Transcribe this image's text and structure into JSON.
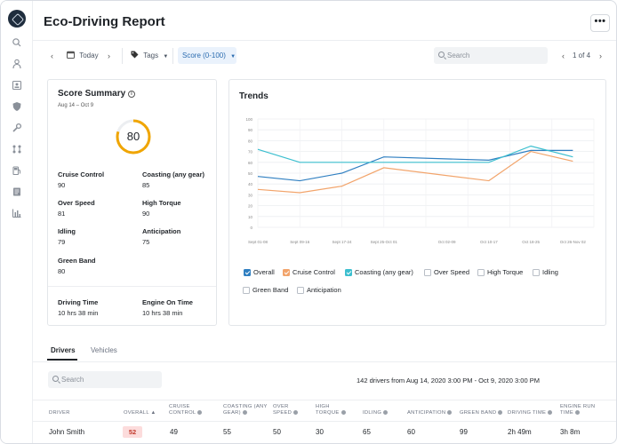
{
  "header": {
    "title": "Eco-Driving Report",
    "more_label": "•••"
  },
  "toolbar": {
    "date_label": "Today",
    "tags_label": "Tags",
    "score_filter_label": "Score (0-100)",
    "search_placeholder": "Search",
    "pagination": "1 of 4"
  },
  "sidebar_icons": [
    "search-icon",
    "user-location-icon",
    "contacts-icon",
    "shield-icon",
    "wrench-icon",
    "route-icon",
    "fuel-icon",
    "document-icon",
    "bar-chart-icon"
  ],
  "score_summary": {
    "title": "Score Summary",
    "date_range": "Aug 14 – Oct 9",
    "score": 80,
    "score_max": 100,
    "gauge_color": "#f0a500",
    "metrics": [
      {
        "label": "Cruise Control",
        "value": "90"
      },
      {
        "label": "Coasting (any gear)",
        "value": "85"
      },
      {
        "label": "Over Speed",
        "value": "81"
      },
      {
        "label": "High Torque",
        "value": "90"
      },
      {
        "label": "Idling",
        "value": "79"
      },
      {
        "label": "Anticipation",
        "value": "75"
      },
      {
        "label": "Green Band",
        "value": "80"
      }
    ],
    "driving_time_label": "Driving Time",
    "driving_time_value": "10 hrs 38 min",
    "engine_on_label": "Engine On Time",
    "engine_on_value": "10 hrs 38 min"
  },
  "trends": {
    "title": "Trends",
    "legend": [
      {
        "label": "Overall",
        "checked": true,
        "color": "#2f7fc1"
      },
      {
        "label": "Cruise Control",
        "checked": true,
        "color": "#f2a46b"
      },
      {
        "label": "Coasting (any gear)",
        "checked": true,
        "color": "#3cbfcf"
      },
      {
        "label": "Over Speed",
        "checked": false
      },
      {
        "label": "High Torque",
        "checked": false
      },
      {
        "label": "Idling",
        "checked": false
      },
      {
        "label": "Green Band",
        "checked": false
      },
      {
        "label": "Anticipation",
        "checked": false
      }
    ]
  },
  "chart_data": {
    "type": "line",
    "title": "Trends",
    "x": [
      "Sept 01-08",
      "Sept 09-16",
      "Sept 17-24",
      "Sept 25-Oct 01",
      "Oct 02-09",
      "Oct 10-17",
      "Oct 18-25",
      "Oct 26-Nov 02"
    ],
    "x_positions": [
      0,
      1,
      2,
      3,
      4.5,
      5.5,
      6.5,
      7.5
    ],
    "ylim": [
      0,
      100
    ],
    "yticks": [
      0,
      10,
      20,
      30,
      40,
      50,
      60,
      70,
      80,
      90,
      100
    ],
    "grid": true,
    "series": [
      {
        "name": "Overall",
        "color": "#2f7fc1",
        "x": [
          0,
          1,
          2,
          3,
          5.5,
          6.5,
          7.5
        ],
        "values": [
          47,
          43,
          50,
          65,
          62,
          71,
          71
        ]
      },
      {
        "name": "Cruise Control",
        "color": "#f2a46b",
        "x": [
          0,
          1,
          2,
          3,
          5.5,
          6.5,
          7.5
        ],
        "values": [
          35,
          32,
          38,
          55,
          43,
          70,
          61
        ]
      },
      {
        "name": "Coasting (any gear)",
        "color": "#3cbfcf",
        "x": [
          0,
          1,
          5.5,
          6.5,
          7.5
        ],
        "values": [
          72,
          60,
          60,
          75,
          65
        ]
      }
    ]
  },
  "tabs": [
    {
      "label": "Drivers",
      "active": true
    },
    {
      "label": "Vehicles",
      "active": false
    }
  ],
  "table": {
    "search_placeholder": "Search",
    "summary": "142 drivers from Aug 14, 2020 3:00 PM - Oct 9, 2020 3:00 PM",
    "columns": [
      {
        "label": "Driver"
      },
      {
        "label": "Overall ▲"
      },
      {
        "label": "Cruise Control",
        "info": true
      },
      {
        "label": "Coasting (any gear)",
        "info": true
      },
      {
        "label": "Over Speed",
        "info": true
      },
      {
        "label": "High Torque",
        "info": true
      },
      {
        "label": "Idling",
        "info": true
      },
      {
        "label": "Anticipation",
        "info": true
      },
      {
        "label": "Green Band",
        "info": true
      },
      {
        "label": "Driving Time",
        "info": true
      },
      {
        "label": "Engine Run Time",
        "info": true
      }
    ],
    "rows": [
      {
        "driver": "John Smith",
        "overall": "52",
        "cells": [
          "49",
          "55",
          "50",
          "30",
          "65",
          "60",
          "99",
          "2h 49m",
          "3h 8m"
        ]
      }
    ]
  }
}
